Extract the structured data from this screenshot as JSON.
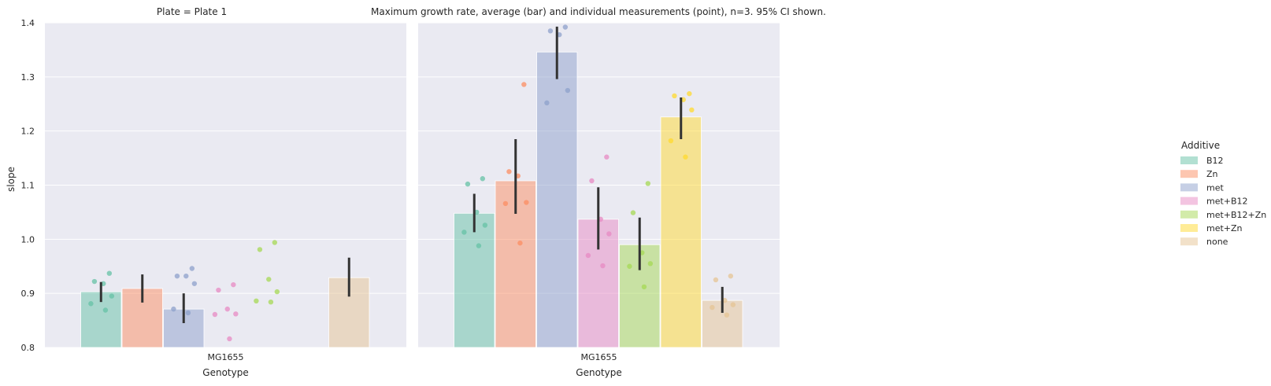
{
  "chart_data": {
    "type": "bar",
    "title": "Maximum growth rate, average (bar) and individual measurements (point), n=3. 95% CI shown.",
    "ylabel": "slope",
    "xlabel": "Genotype",
    "ylim": [
      0.8,
      1.4
    ],
    "yticks": [
      "0.8",
      "0.9",
      "1.0",
      "1.1",
      "1.2",
      "1.3",
      "1.4"
    ],
    "categories": [
      "MG1655"
    ],
    "grid": true,
    "legend": {
      "title": "Additive",
      "placement": "right",
      "entries": [
        {
          "name": "B12",
          "color": "#66c2a5"
        },
        {
          "name": "Zn",
          "color": "#fc8d62"
        },
        {
          "name": "met",
          "color": "#8da0cb"
        },
        {
          "name": "met+B12",
          "color": "#e78ac3"
        },
        {
          "name": "met+B12+Zn",
          "color": "#a6d854"
        },
        {
          "name": "met+Zn",
          "color": "#ffd92f"
        },
        {
          "name": "none",
          "color": "#e5c494"
        }
      ]
    },
    "panels": [
      {
        "title": "Plate = Plate 1",
        "bars": [
          {
            "additive": "B12",
            "value": 0.903,
            "ci": [
              0.884,
              0.921
            ],
            "points": [
              0.937,
              0.922,
              0.918,
              0.895,
              0.881,
              0.869
            ]
          },
          {
            "additive": "Zn",
            "value": 0.909,
            "ci": [
              0.883,
              0.935
            ],
            "points": []
          },
          {
            "additive": "met",
            "value": 0.871,
            "ci": [
              0.845,
              0.9
            ],
            "points": [
              0.946,
              0.932,
              0.932,
              0.918,
              0.871,
              0.864
            ]
          },
          {
            "additive": "met+B12",
            "value": null,
            "ci": null,
            "points": [
              0.916,
              0.906,
              0.871,
              0.862,
              0.861,
              0.816
            ]
          },
          {
            "additive": "met+B12+Zn",
            "value": null,
            "ci": null,
            "points": [
              0.994,
              0.981,
              0.926,
              0.903,
              0.886,
              0.884
            ]
          },
          {
            "additive": "met+Zn",
            "value": null,
            "ci": null,
            "points": []
          },
          {
            "additive": "none",
            "value": 0.929,
            "ci": [
              0.894,
              0.966
            ],
            "points": []
          }
        ]
      },
      {
        "title": "",
        "bars": [
          {
            "additive": "B12",
            "value": 1.048,
            "ci": [
              1.013,
              1.084
            ],
            "points": [
              1.112,
              1.102,
              1.05,
              1.026,
              1.013,
              0.988
            ]
          },
          {
            "additive": "Zn",
            "value": 1.108,
            "ci": [
              1.047,
              1.185
            ],
            "points": [
              1.286,
              1.125,
              1.117,
              1.068,
              1.066,
              0.993
            ]
          },
          {
            "additive": "met",
            "value": 1.346,
            "ci": [
              1.296,
              1.393
            ],
            "points": [
              1.392,
              1.385,
              1.378,
              1.275,
              1.252
            ]
          },
          {
            "additive": "met+B12",
            "value": 1.037,
            "ci": [
              0.981,
              1.096
            ],
            "points": [
              1.152,
              1.108,
              1.037,
              1.01,
              0.97,
              0.951
            ]
          },
          {
            "additive": "met+B12+Zn",
            "value": 0.99,
            "ci": [
              0.943,
              1.04
            ],
            "points": [
              1.103,
              1.049,
              0.975,
              0.955,
              0.95,
              0.912
            ]
          },
          {
            "additive": "met+Zn",
            "value": 1.226,
            "ci": [
              1.185,
              1.262
            ],
            "points": [
              1.269,
              1.265,
              1.258,
              1.239,
              1.182,
              1.152
            ]
          },
          {
            "additive": "none",
            "value": 0.887,
            "ci": [
              0.864,
              0.912
            ],
            "points": [
              0.932,
              0.925,
              0.887,
              0.879,
              0.874,
              0.86
            ]
          }
        ]
      }
    ]
  }
}
